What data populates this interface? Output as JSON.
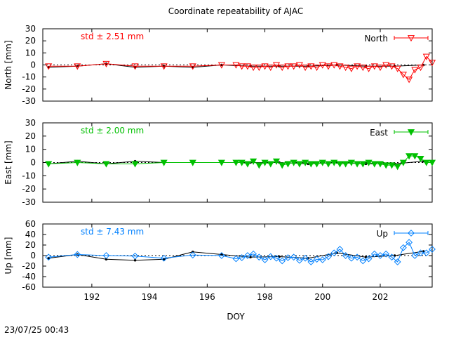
{
  "chart_data": {
    "type": "line",
    "title": "Coordinate repeatability of AJAC",
    "xlabel": "DOY",
    "timestamp": "23/07/25 00:43",
    "xlim": [
      190.3,
      203.8
    ],
    "xticks": [
      192,
      194,
      196,
      198,
      200,
      202
    ],
    "panels": [
      {
        "ylabel": "North [mm]",
        "ylim": [
          -30,
          30
        ],
        "yticks": [
          30,
          20,
          10,
          0,
          -10,
          -20,
          -30
        ],
        "std_label": "std ± 2.51 mm",
        "legend": "North",
        "color": "#ff0000",
        "marker": "triangle-down",
        "series": {
          "name": "North",
          "x": [
            190.5,
            191.5,
            192.5,
            193.5,
            194.5,
            195.5,
            196.5,
            197.0,
            197.2,
            197.4,
            197.6,
            197.8,
            198.0,
            198.2,
            198.4,
            198.6,
            198.8,
            199.0,
            199.2,
            199.4,
            199.6,
            199.8,
            200.0,
            200.2,
            200.4,
            200.6,
            200.8,
            201.0,
            201.2,
            201.4,
            201.6,
            201.8,
            202.0,
            202.2,
            202.4,
            202.6,
            202.8,
            203.0,
            203.2,
            203.4,
            203.6,
            203.8
          ],
          "y": [
            -1,
            -1,
            1,
            -1,
            -1,
            -1,
            0,
            0,
            -1,
            -1,
            -2,
            -2,
            -1,
            -2,
            0,
            -2,
            -1,
            -1,
            0,
            -2,
            -1,
            -2,
            0,
            -1,
            0,
            -1,
            -2,
            -3,
            -1,
            -2,
            -3,
            -1,
            -2,
            0,
            -1,
            -3,
            -8,
            -12,
            -4,
            -2,
            7,
            2
          ]
        },
        "fit": {
          "x": [
            190.5,
            191.5,
            192.5,
            193.5,
            194.5,
            195.5,
            196.5,
            197.5,
            198.5,
            199.5,
            200.5,
            201.5,
            202.5,
            203.5
          ],
          "y": [
            -2,
            -1,
            1,
            -2,
            -1,
            -2,
            0,
            -1,
            -1,
            -1,
            0,
            -1,
            -1,
            0
          ]
        }
      },
      {
        "ylabel": "East [mm]",
        "ylim": [
          -30,
          30
        ],
        "yticks": [
          30,
          20,
          10,
          0,
          -10,
          -20,
          -30
        ],
        "std_label": "std ± 2.00 mm",
        "legend": "East",
        "color": "#00c000",
        "marker": "triangle-down-filled",
        "series": {
          "name": "East",
          "x": [
            190.5,
            191.5,
            192.5,
            193.5,
            194.5,
            195.5,
            196.5,
            197.0,
            197.2,
            197.4,
            197.6,
            197.8,
            198.0,
            198.2,
            198.4,
            198.6,
            198.8,
            199.0,
            199.2,
            199.4,
            199.6,
            199.8,
            200.0,
            200.2,
            200.4,
            200.6,
            200.8,
            201.0,
            201.2,
            201.4,
            201.6,
            201.8,
            202.0,
            202.2,
            202.4,
            202.6,
            202.8,
            203.0,
            203.2,
            203.4,
            203.6,
            203.8
          ],
          "y": [
            -1,
            0,
            -1,
            -1,
            0,
            0,
            0,
            0,
            0,
            -1,
            1,
            -2,
            0,
            -1,
            1,
            -2,
            -1,
            0,
            -1,
            0,
            -1,
            -1,
            0,
            -1,
            0,
            -1,
            -1,
            0,
            -1,
            -1,
            0,
            -1,
            -1,
            -2,
            -2,
            -3,
            0,
            5,
            5,
            3,
            0,
            0
          ]
        },
        "fit": {
          "x": [
            190.5,
            191.5,
            192.5,
            193.5,
            194.5,
            195.5,
            196.5,
            197.5,
            198.5,
            199.5,
            200.5,
            201.5,
            202.5,
            203.5
          ],
          "y": [
            -1,
            1,
            -1,
            1,
            0,
            0,
            0,
            0,
            0,
            -1,
            0,
            -1,
            -1,
            1
          ]
        }
      },
      {
        "ylabel": "Up [mm]",
        "ylim": [
          -60,
          60
        ],
        "yticks": [
          60,
          40,
          20,
          0,
          -20,
          -40,
          -60
        ],
        "std_label": "std ± 7.43 mm",
        "legend": "Up",
        "color": "#0080ff",
        "marker": "diamond",
        "series": {
          "name": "Up",
          "x": [
            190.5,
            191.5,
            192.5,
            193.5,
            194.5,
            195.5,
            196.5,
            197.0,
            197.2,
            197.4,
            197.6,
            197.8,
            198.0,
            198.2,
            198.4,
            198.6,
            198.8,
            199.0,
            199.2,
            199.4,
            199.6,
            199.8,
            200.0,
            200.2,
            200.4,
            200.6,
            200.8,
            201.0,
            201.2,
            201.4,
            201.6,
            201.8,
            202.0,
            202.2,
            202.4,
            202.6,
            202.8,
            203.0,
            203.2,
            203.4,
            203.6,
            203.8
          ],
          "y": [
            -3,
            2,
            0,
            -1,
            -5,
            1,
            0,
            -6,
            -4,
            0,
            3,
            -3,
            -8,
            -2,
            -5,
            -10,
            -4,
            -3,
            -9,
            -5,
            -12,
            -7,
            -8,
            -2,
            5,
            12,
            0,
            -5,
            -3,
            -10,
            -6,
            3,
            0,
            3,
            -3,
            -12,
            15,
            25,
            0,
            5,
            5,
            12
          ]
        },
        "fit": {
          "x": [
            190.5,
            191.5,
            192.5,
            193.5,
            194.5,
            195.5,
            196.5,
            197.5,
            198.5,
            199.5,
            200.5,
            201.5,
            202.5,
            203.5
          ],
          "y": [
            -5,
            2,
            -7,
            -9,
            -7,
            7,
            2,
            -3,
            -2,
            -5,
            5,
            -3,
            0,
            8
          ]
        }
      }
    ]
  }
}
